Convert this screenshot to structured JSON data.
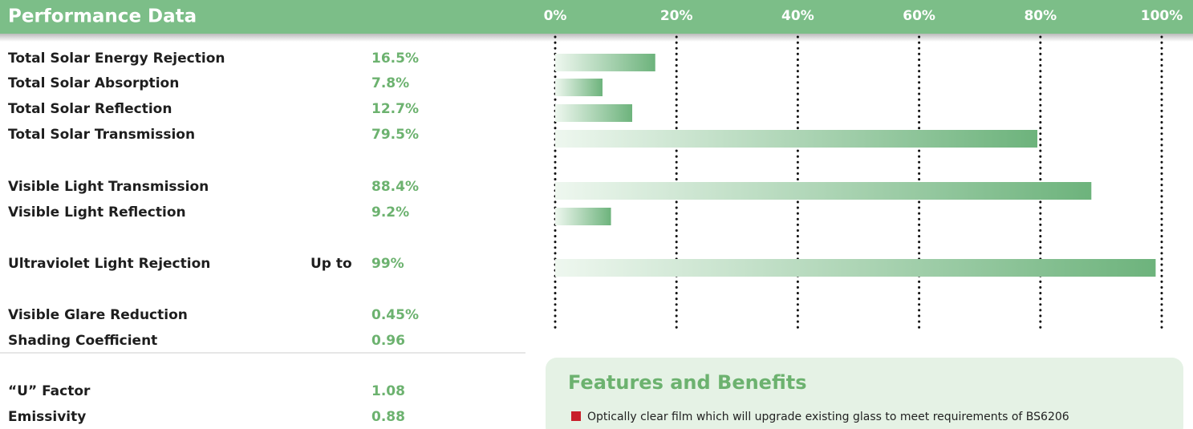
{
  "header": {
    "title": "Performance Data"
  },
  "chart_data": {
    "type": "bar",
    "orientation": "horizontal",
    "xlim": [
      0,
      100
    ],
    "xticks": [
      {
        "value": 0,
        "label": "0%"
      },
      {
        "value": 20,
        "label": "20%"
      },
      {
        "value": 40,
        "label": "40%"
      },
      {
        "value": 60,
        "label": "60%"
      },
      {
        "value": 80,
        "label": "80%"
      },
      {
        "value": 100,
        "label": "100%"
      }
    ],
    "categories": [
      "Total Solar Energy Rejection",
      "Total Solar Absorption",
      "Total Solar Reflection",
      "Total Solar Transmission",
      "Visible Light Transmission",
      "Visible Light Reflection",
      "Ultraviolet Light Rejection"
    ],
    "values": [
      16.5,
      7.8,
      12.7,
      79.5,
      88.4,
      9.2,
      99
    ],
    "value_labels": [
      "16.5%",
      "7.8%",
      "12.7%",
      "79.5%",
      "88.4%",
      "9.2%",
      "99%"
    ],
    "value_prefixes": [
      null,
      null,
      null,
      null,
      null,
      null,
      "Up to"
    ],
    "color": "#6db37c",
    "grid": true
  },
  "other_rows": [
    {
      "label": "Visible Glare Reduction",
      "value": "0.45%"
    },
    {
      "label": "Shading Coefficient",
      "value": "0.96"
    },
    {
      "label": "“U” Factor",
      "value": "1.08"
    },
    {
      "label": "Emissivity",
      "value": "0.88"
    }
  ],
  "features": {
    "title": "Features and Benefits",
    "items": [
      "Optically clear film which will upgrade existing glass to meet requirements of BS6206"
    ]
  }
}
